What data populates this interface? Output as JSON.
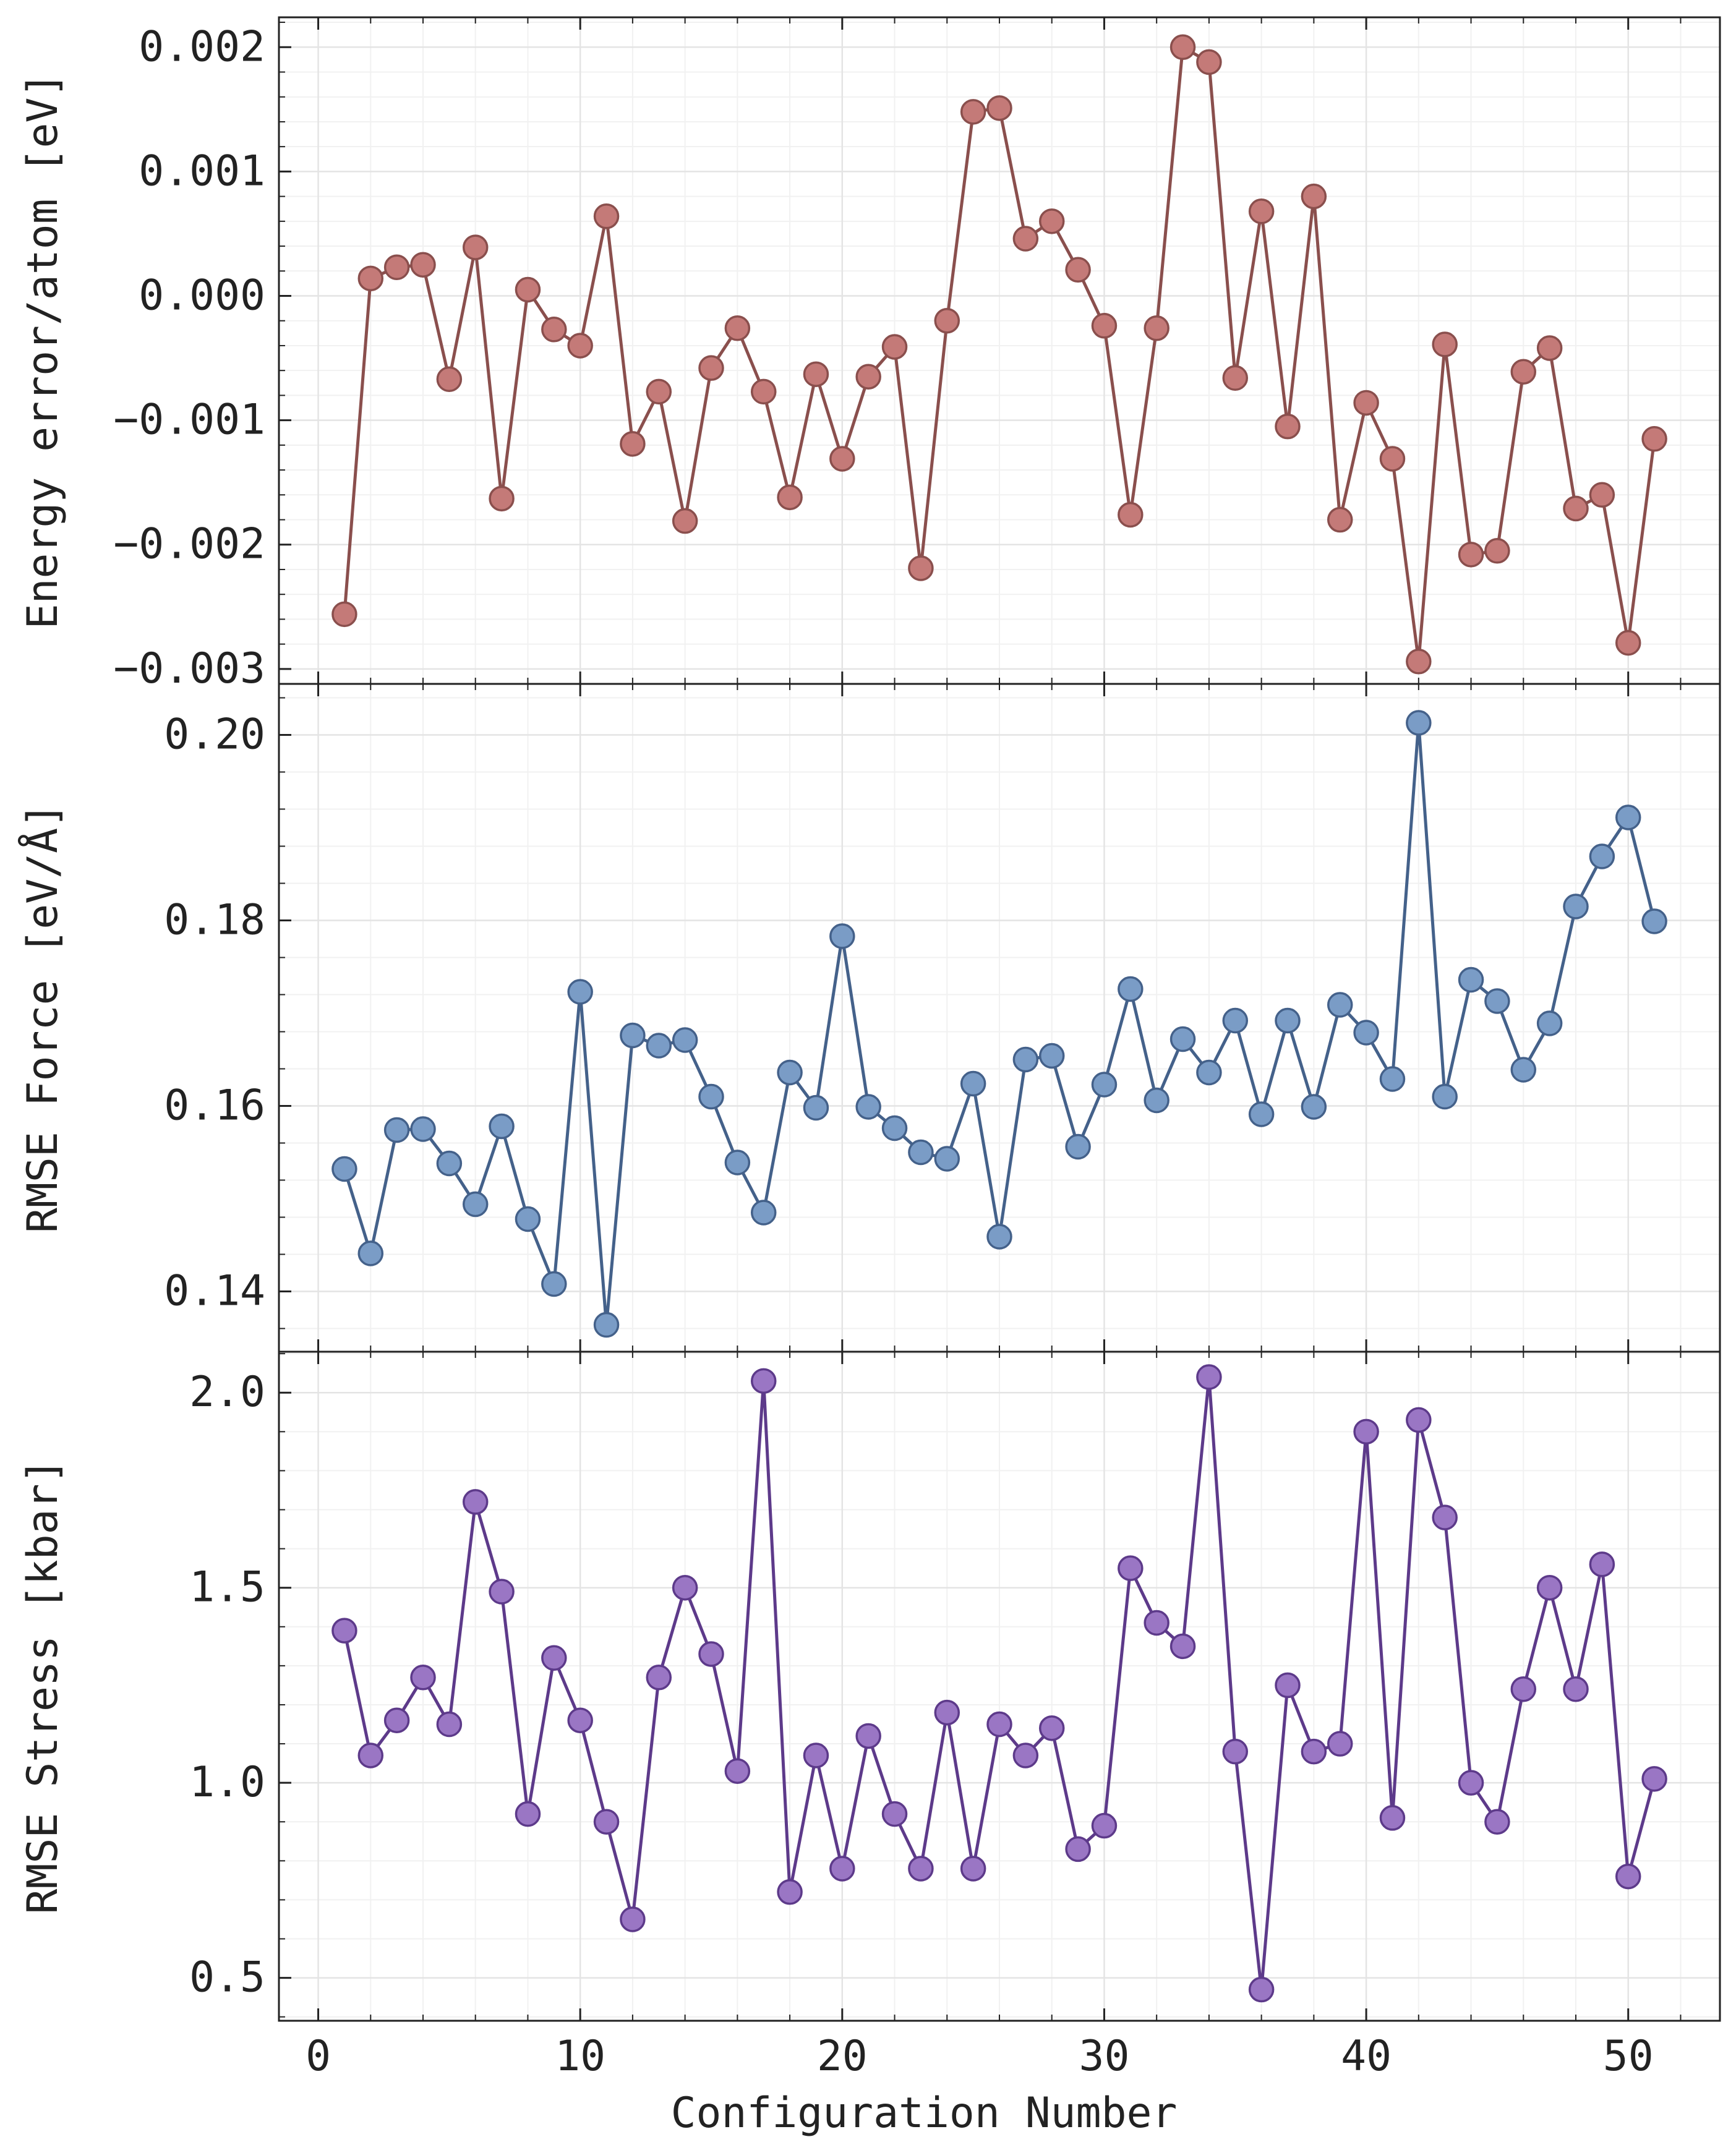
{
  "figure": {
    "xlabel": "Configuration Number",
    "grid": true,
    "shared_x": true
  },
  "chart_data": [
    {
      "type": "line",
      "ylabel": "Energy error/atom [eV]",
      "xlim": [
        -1.5,
        53.5
      ],
      "ylim": [
        -0.00312,
        0.00224
      ],
      "xticks": [
        0,
        10,
        20,
        30,
        40,
        50
      ],
      "yticks": [
        -0.003,
        -0.002,
        -0.001,
        0.0,
        0.001,
        0.002
      ],
      "ytick_labels": [
        "−0.003",
        "−0.002",
        "−0.001",
        "0.000",
        "0.001",
        "0.002"
      ],
      "color": "#c47a78",
      "line_color": "#8a4f4d",
      "x": [
        1,
        2,
        3,
        4,
        5,
        6,
        7,
        8,
        9,
        10,
        11,
        12,
        13,
        14,
        15,
        16,
        17,
        18,
        19,
        20,
        21,
        22,
        23,
        24,
        25,
        26,
        27,
        28,
        29,
        30,
        31,
        32,
        33,
        34,
        35,
        36,
        37,
        38,
        39,
        40,
        41,
        42,
        43,
        44,
        45,
        46,
        47,
        48,
        49,
        50,
        51
      ],
      "y": [
        -0.00256,
        0.00014,
        0.00023,
        0.00025,
        -0.00067,
        0.00039,
        -0.00163,
        5e-05,
        -0.00027,
        -0.0004,
        0.00064,
        -0.00119,
        -0.00077,
        -0.00181,
        -0.00058,
        -0.00026,
        -0.00077,
        -0.00162,
        -0.00063,
        -0.00131,
        -0.00065,
        -0.00041,
        -0.00219,
        -0.0002,
        0.00148,
        0.00151,
        0.00046,
        0.0006,
        0.00021,
        -0.00024,
        -0.00176,
        -0.00026,
        0.002,
        0.00188,
        -0.00066,
        0.00068,
        -0.00105,
        0.0008,
        -0.0018,
        -0.00086,
        -0.00131,
        -0.00294,
        -0.00039,
        -0.00208,
        -0.00205,
        -0.00061,
        -0.00042,
        -0.00171,
        -0.0016,
        -0.00279,
        -0.00115
      ]
    },
    {
      "type": "line",
      "ylabel": "RMSE Force [eV/Å]",
      "xlim": [
        -1.5,
        53.5
      ],
      "ylim": [
        0.1335,
        0.2055
      ],
      "xticks": [
        0,
        10,
        20,
        30,
        40,
        50
      ],
      "yticks": [
        0.14,
        0.16,
        0.18,
        0.2
      ],
      "ytick_labels": [
        "0.14",
        "0.16",
        "0.18",
        "0.20"
      ],
      "color": "#7a9cc6",
      "line_color": "#44618a",
      "x": [
        1,
        2,
        3,
        4,
        5,
        6,
        7,
        8,
        9,
        10,
        11,
        12,
        13,
        14,
        15,
        16,
        17,
        18,
        19,
        20,
        21,
        22,
        23,
        24,
        25,
        26,
        27,
        28,
        29,
        30,
        31,
        32,
        33,
        34,
        35,
        36,
        37,
        38,
        39,
        40,
        41,
        42,
        43,
        44,
        45,
        46,
        47,
        48,
        49,
        50,
        51
      ],
      "y": [
        0.1532,
        0.1441,
        0.1574,
        0.1575,
        0.1538,
        0.1494,
        0.1578,
        0.1478,
        0.1408,
        0.1723,
        0.1364,
        0.1676,
        0.1665,
        0.1671,
        0.161,
        0.1539,
        0.1485,
        0.1636,
        0.1598,
        0.1783,
        0.1599,
        0.1576,
        0.155,
        0.1543,
        0.1624,
        0.1459,
        0.165,
        0.1654,
        0.1556,
        0.1623,
        0.1726,
        0.1606,
        0.1672,
        0.1636,
        0.1692,
        0.1591,
        0.1692,
        0.1599,
        0.1709,
        0.1679,
        0.1629,
        0.2013,
        0.161,
        0.1736,
        0.1713,
        0.1639,
        0.1689,
        0.1815,
        0.1869,
        0.1911,
        0.1799
      ]
    },
    {
      "type": "line",
      "ylabel": "RMSE Stress [kbar]",
      "xlim": [
        -1.5,
        53.5
      ],
      "ylim": [
        0.39,
        2.105
      ],
      "xticks": [
        0,
        10,
        20,
        30,
        40,
        50
      ],
      "yticks": [
        0.5,
        1.0,
        1.5,
        2.0
      ],
      "ytick_labels": [
        "0.5",
        "1.0",
        "1.5",
        "2.0"
      ],
      "color": "#9a76c4",
      "line_color": "#5d3a8a",
      "x": [
        1,
        2,
        3,
        4,
        5,
        6,
        7,
        8,
        9,
        10,
        11,
        12,
        13,
        14,
        15,
        16,
        17,
        18,
        19,
        20,
        21,
        22,
        23,
        24,
        25,
        26,
        27,
        28,
        29,
        30,
        31,
        32,
        33,
        34,
        35,
        36,
        37,
        38,
        39,
        40,
        41,
        42,
        43,
        44,
        45,
        46,
        47,
        48,
        49,
        50,
        51
      ],
      "y": [
        1.39,
        1.07,
        1.16,
        1.27,
        1.15,
        1.72,
        1.49,
        0.92,
        1.32,
        1.16,
        0.9,
        0.65,
        1.27,
        1.5,
        1.33,
        1.03,
        2.03,
        0.72,
        1.07,
        0.78,
        1.12,
        0.92,
        0.78,
        1.18,
        0.78,
        1.15,
        1.07,
        1.14,
        0.83,
        0.89,
        1.55,
        1.41,
        1.35,
        2.04,
        1.08,
        0.47,
        1.25,
        1.08,
        1.1,
        1.9,
        0.91,
        1.93,
        1.68,
        1.0,
        0.9,
        1.24,
        1.5,
        1.24,
        1.56,
        0.76,
        1.01
      ]
    }
  ]
}
